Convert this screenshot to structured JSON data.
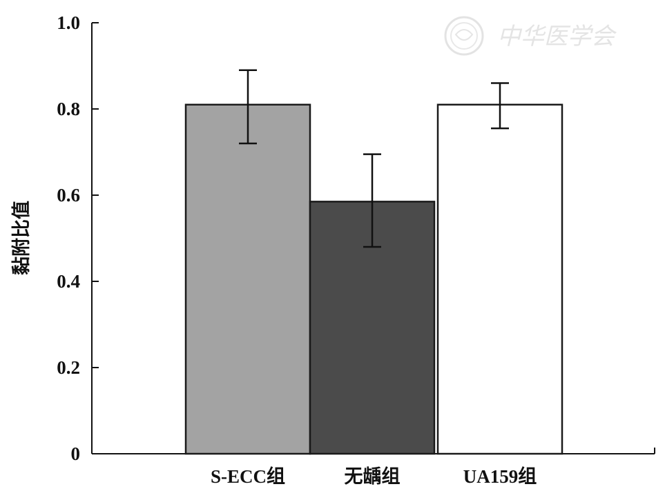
{
  "chart_data": {
    "type": "bar",
    "categories": [
      "S-ECC组",
      "无龋组",
      "UA159组"
    ],
    "values": [
      0.81,
      0.585,
      0.81
    ],
    "error": [
      [
        0.72,
        0.89
      ],
      [
        0.48,
        0.695
      ],
      [
        0.755,
        0.86
      ]
    ],
    "bar_colors": [
      "#a3a3a3",
      "#4b4b4b",
      "#ffffff"
    ],
    "title": "",
    "xlabel": "",
    "ylabel": "黏附比值",
    "ylim": [
      0,
      1.0
    ],
    "yticks": [
      0,
      0.2,
      0.4,
      0.6,
      0.8,
      1.0
    ],
    "ytick_labels": [
      "0",
      "0.2",
      "0.4",
      "0.6",
      "0.8",
      "1.0"
    ],
    "grid": false,
    "legend": "none"
  },
  "watermark": {
    "text": "中华医学会",
    "icon": "society-seal-icon"
  }
}
